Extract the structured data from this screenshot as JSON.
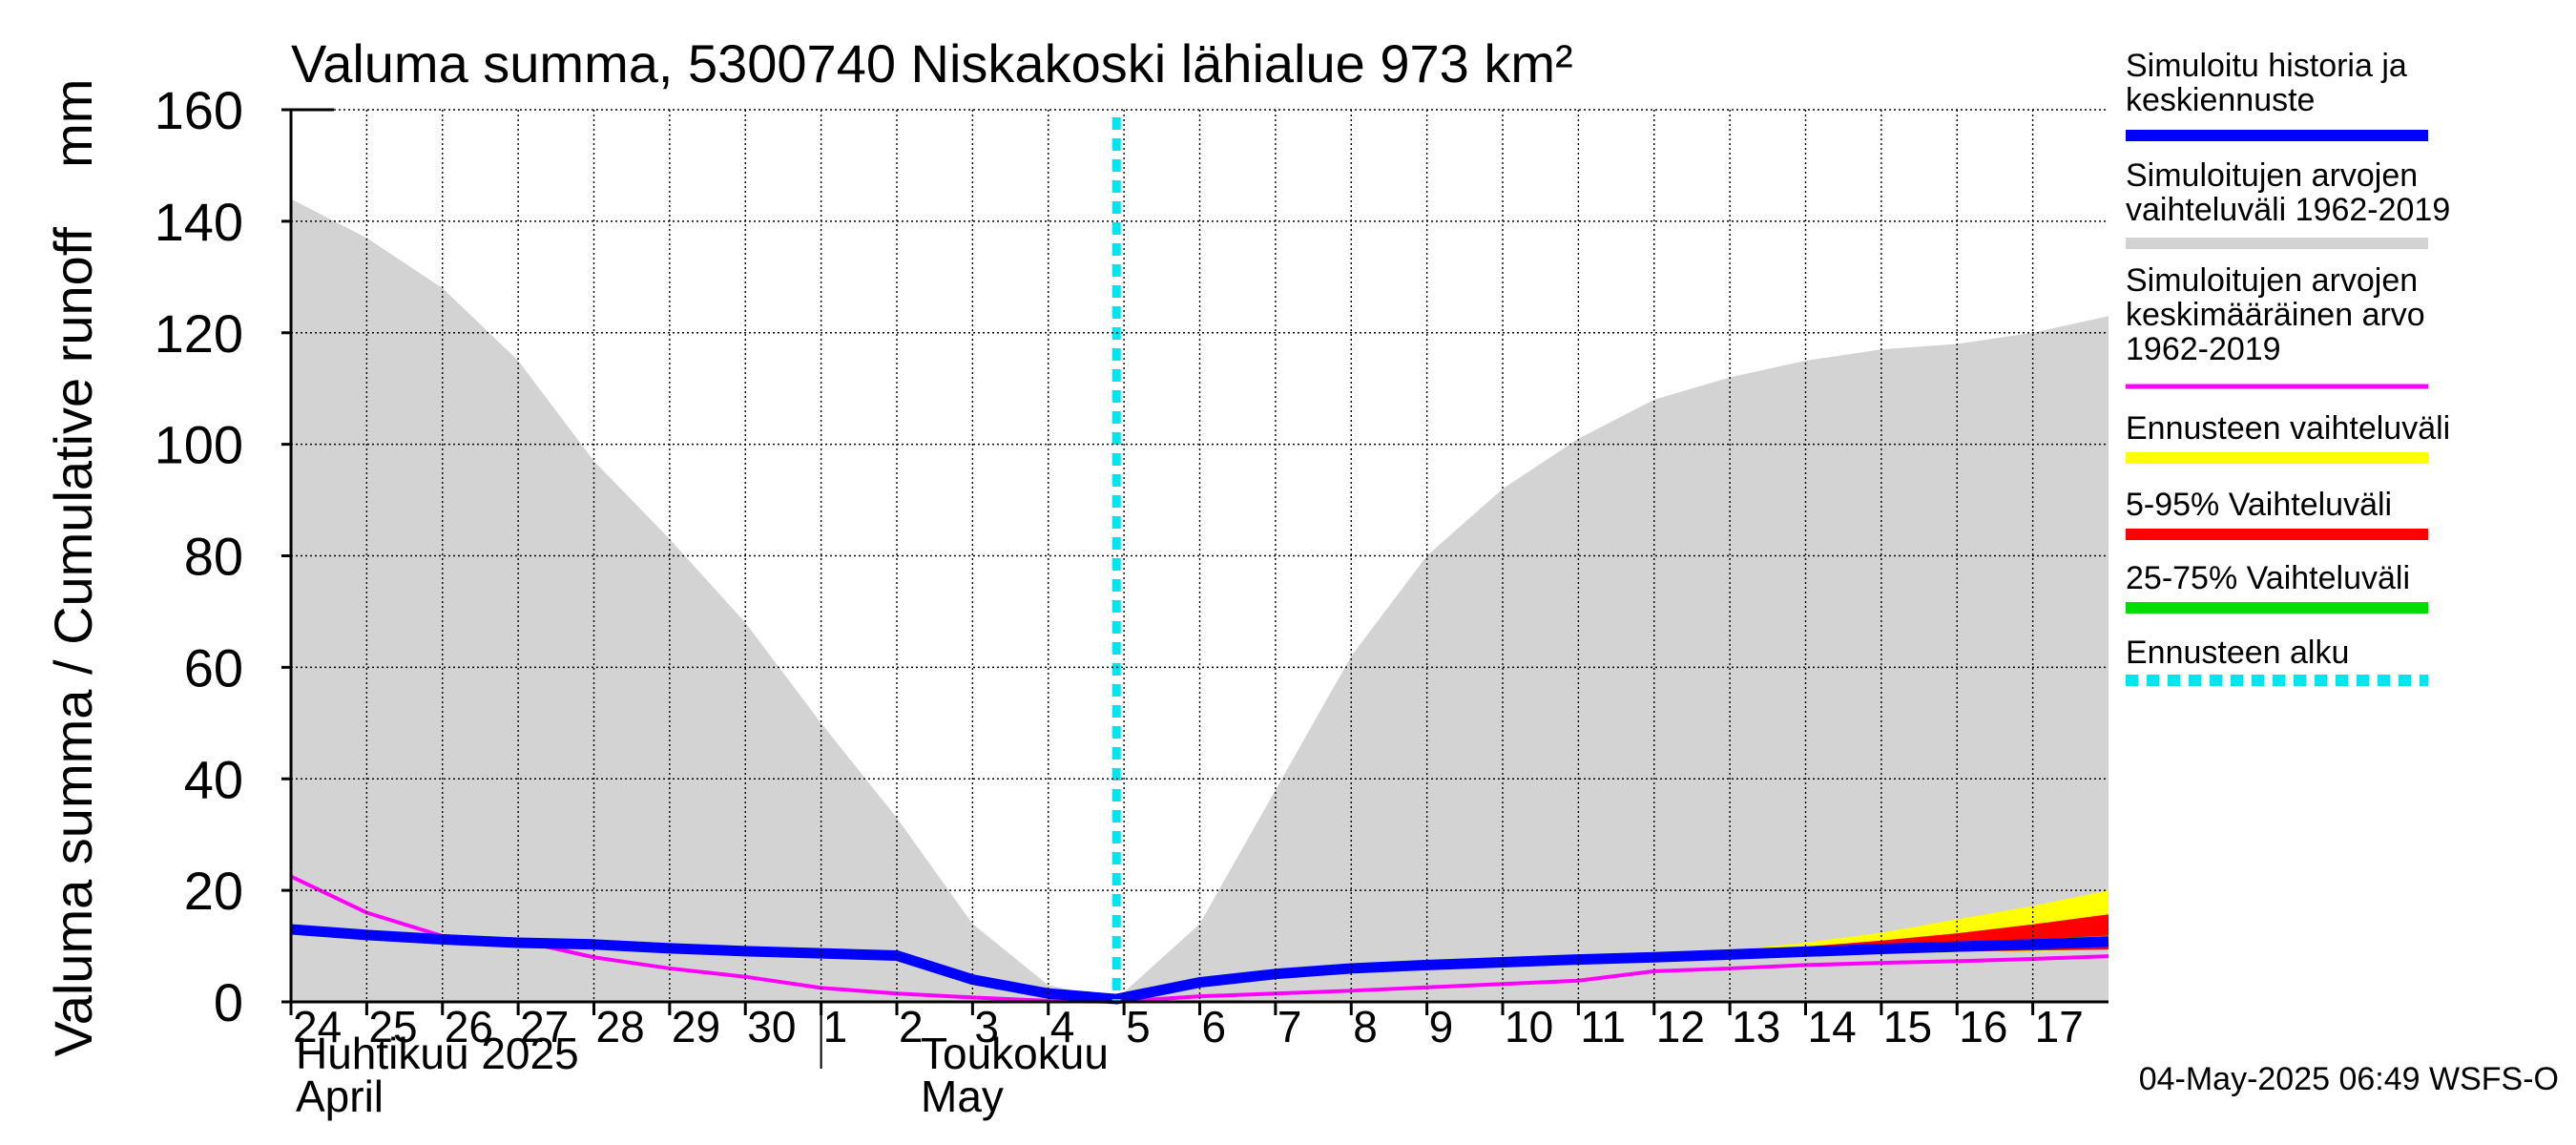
{
  "chart_data": {
    "type": "area",
    "title": "Valuma summa, 5300740 Niskakoski lähialue 973 km²",
    "ylabel": "Valuma summa / Cumulative runoff    mm",
    "ylim": [
      0,
      160
    ],
    "yticks": [
      0,
      20,
      40,
      60,
      80,
      100,
      120,
      140,
      160
    ],
    "x_start_day": 24,
    "x_end_day": 18,
    "day_ticks": [
      "24",
      "25",
      "26",
      "27",
      "28",
      "29",
      "30",
      "1",
      "2",
      "3",
      "4",
      "5",
      "6",
      "7",
      "8",
      "9",
      "10",
      "11",
      "12",
      "13",
      "14",
      "15",
      "16",
      "17"
    ],
    "month_labels": [
      {
        "fi": "Huhtikuu  2025",
        "en": "April"
      },
      {
        "fi": "Toukokuu",
        "en": "May"
      }
    ],
    "forecast_start_day": 10.9,
    "x_day_index": [
      0,
      1,
      2,
      3,
      4,
      5,
      6,
      7,
      8,
      9,
      10,
      10.9,
      12,
      13,
      14,
      15,
      16,
      17,
      18,
      19,
      20,
      21,
      22,
      23,
      24
    ],
    "series": [
      {
        "name": "Simuloitujen arvojen vaihteluväli 1962-2019 (max)",
        "color": "#d3d3d3",
        "values": [
          144,
          137,
          128,
          115,
          97,
          83,
          68,
          50,
          33,
          14,
          3,
          0.5,
          14,
          38,
          62,
          80,
          92,
          101,
          108,
          112,
          115,
          117,
          118,
          120,
          123
        ]
      },
      {
        "name": "Simuloitu historia ja keskiennuste",
        "color": "#0000ff",
        "values": [
          13,
          12,
          11.2,
          10.6,
          10.3,
          9.6,
          9.1,
          8.7,
          8.3,
          4,
          1.5,
          0.5,
          3.5,
          5,
          6,
          6.6,
          7.1,
          7.6,
          8,
          8.5,
          9,
          9.5,
          9.9,
          10.3,
          10.8
        ]
      },
      {
        "name": "Simuloitujen arvojen keskimääräinen arvo 1962-2019",
        "color": "#ff00ff",
        "values": [
          22.5,
          16,
          11.8,
          11,
          8,
          6,
          4.5,
          2.5,
          1.5,
          0.8,
          0.2,
          0,
          1,
          1.5,
          2,
          2.6,
          3.2,
          3.8,
          5.5,
          6,
          6.6,
          7,
          7.3,
          7.7,
          8.2
        ]
      }
    ],
    "forecast_bands": [
      {
        "name": "Ennusteen vaihteluväli",
        "color": "#ffff00",
        "x_day_index": [
          17,
          18,
          19,
          20,
          21,
          22,
          23,
          24
        ],
        "low": [
          7.3,
          7.7,
          8,
          8.3,
          8.6,
          8.9,
          9.1,
          9.3
        ],
        "high": [
          7.8,
          8.4,
          9.2,
          10.6,
          12.4,
          14.8,
          17.2,
          20
        ]
      },
      {
        "name": "5-95% Vaihteluväli",
        "color": "#ff0000",
        "x_day_index": [
          17,
          18,
          19,
          20,
          21,
          22,
          23,
          24
        ],
        "low": [
          7.4,
          7.8,
          8.2,
          8.5,
          8.8,
          9,
          9.2,
          9.4
        ],
        "high": [
          7.7,
          8.2,
          8.9,
          9.9,
          11,
          12.3,
          13.9,
          15.7
        ]
      },
      {
        "name": "25-75% Vaihteluväli",
        "color": "#00dd00",
        "x_day_index": [
          17,
          18,
          19,
          20,
          21,
          22,
          23,
          24
        ],
        "low": [
          7.5,
          8,
          8.4,
          8.9,
          9.3,
          9.7,
          10,
          10.2
        ],
        "high": [
          7.6,
          8.1,
          8.7,
          9.3,
          9.9,
          10.5,
          11.2,
          11.9
        ]
      }
    ]
  },
  "legend": [
    {
      "label_lines": [
        "Simuloitu historia ja",
        "keskiennuste"
      ],
      "color": "#0000ff",
      "style": "solid"
    },
    {
      "label_lines": [
        "Simuloitujen arvojen",
        "vaihteluväli 1962-2019"
      ],
      "color": "#d3d3d3",
      "style": "solid"
    },
    {
      "label_lines": [
        "Simuloitujen arvojen",
        "keskimääräinen arvo",
        "   1962-2019"
      ],
      "color": "#ff00ff",
      "style": "thin"
    },
    {
      "label_lines": [
        "Ennusteen vaihteluväli"
      ],
      "color": "#ffff00",
      "style": "solid"
    },
    {
      "label_lines": [
        "5-95% Vaihteluväli"
      ],
      "color": "#ff0000",
      "style": "solid"
    },
    {
      "label_lines": [
        "25-75% Vaihteluväli"
      ],
      "color": "#00dd00",
      "style": "solid"
    },
    {
      "label_lines": [
        "Ennusteen alku"
      ],
      "color": "#00e5ee",
      "style": "dashed"
    }
  ],
  "footer": {
    "timestamp": "04-May-2025 06:49 WSFS-O"
  }
}
